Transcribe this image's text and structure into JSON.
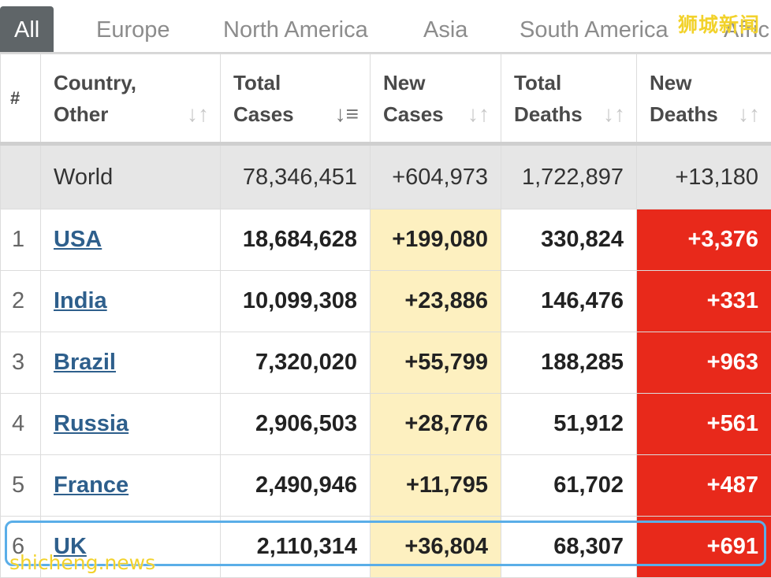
{
  "tabs": [
    "All",
    "Europe",
    "North America",
    "Asia",
    "South America",
    "Afric"
  ],
  "active_tab": "All",
  "watermark_top": "狮城新闻",
  "watermark_bottom": "shicheng.news",
  "headers": {
    "rank": "#",
    "country": [
      "Country,",
      "Other"
    ],
    "total_cases": [
      "Total",
      "Cases"
    ],
    "new_cases": [
      "New",
      "Cases"
    ],
    "total_deaths": [
      "Total",
      "Deaths"
    ],
    "new_deaths": [
      "New",
      "Deaths"
    ]
  },
  "sort_icon": "↓↑",
  "world": {
    "country": "World",
    "total_cases": "78,346,451",
    "new_cases": "+604,973",
    "total_deaths": "1,722,897",
    "new_deaths": "+13,180"
  },
  "rows": [
    {
      "rank": "1",
      "country": "USA",
      "total_cases": "18,684,628",
      "new_cases": "+199,080",
      "total_deaths": "330,824",
      "new_deaths": "+3,376"
    },
    {
      "rank": "2",
      "country": "India",
      "total_cases": "10,099,308",
      "new_cases": "+23,886",
      "total_deaths": "146,476",
      "new_deaths": "+331"
    },
    {
      "rank": "3",
      "country": "Brazil",
      "total_cases": "7,320,020",
      "new_cases": "+55,799",
      "total_deaths": "188,285",
      "new_deaths": "+963"
    },
    {
      "rank": "4",
      "country": "Russia",
      "total_cases": "2,906,503",
      "new_cases": "+28,776",
      "total_deaths": "51,912",
      "new_deaths": "+561"
    },
    {
      "rank": "5",
      "country": "France",
      "total_cases": "2,490,946",
      "new_cases": "+11,795",
      "total_deaths": "61,702",
      "new_deaths": "+487"
    },
    {
      "rank": "6",
      "country": "UK",
      "total_cases": "2,110,314",
      "new_cases": "+36,804",
      "total_deaths": "68,307",
      "new_deaths": "+691"
    }
  ],
  "colors": {
    "active_tab_bg": "#5f6568",
    "new_cases_bg": "#fdf0c0",
    "new_deaths_bg": "#e8291b",
    "link": "#2e5f8c",
    "highlight_border": "#5aaee8"
  }
}
